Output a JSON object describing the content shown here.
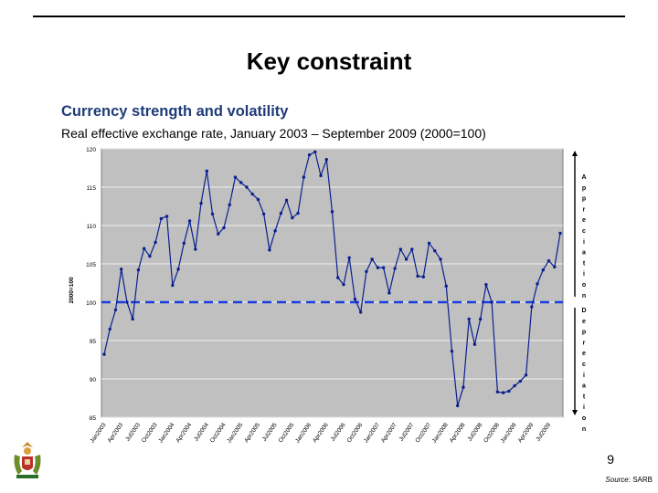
{
  "slide": {
    "title": "Key constraint",
    "subtitle": "Currency strength and volatility",
    "chart_caption": "Real effective exchange rate, January 2003 – September 2009 (2000=100)",
    "page_number": "9",
    "source_prefix": "Source",
    "source_name": ": SARB"
  },
  "colors": {
    "plot_bg": "#c0c0c0",
    "line": "#0a1f8f",
    "baseline": "#1a3de0",
    "subtitle": "#1f3c78"
  },
  "chart_data": {
    "type": "line",
    "ylabel": "2000=100",
    "ylim": [
      85,
      120
    ],
    "yticks": [
      85,
      90,
      95,
      100,
      105,
      110,
      115,
      120
    ],
    "grid": true,
    "baseline_value": 100,
    "x_tick_labels": [
      "Jan2003",
      "Apr2003",
      "Jul2003",
      "Oct2003",
      "Jan2004",
      "Apr2004",
      "Jul2004",
      "Oct2004",
      "Jan2005",
      "Apr2005",
      "Jul2005",
      "Oct2005",
      "Jan2006",
      "Apr2006",
      "Jul2006",
      "Oct2006",
      "Jan2007",
      "Apr2007",
      "Jul2007",
      "Oct2007",
      "Jan2008",
      "Apr2008",
      "Jul2008",
      "Oct2008",
      "Jan2009",
      "Apr2009",
      "Jul2009"
    ],
    "right_labels": {
      "top": "Appreciation",
      "bottom": "Depreciation"
    },
    "series": [
      {
        "values": [
          93.2,
          96.5,
          99.0,
          104.3,
          100.0,
          97.8,
          104.2,
          107.0,
          106.0,
          107.8,
          110.9,
          111.2,
          102.2,
          104.3,
          107.7,
          110.6,
          106.9,
          112.9,
          117.1,
          111.5,
          108.9,
          109.7,
          112.7,
          116.3,
          115.6,
          115.0,
          114.1,
          113.4,
          111.5,
          106.8,
          109.3,
          111.6,
          113.3,
          111.0,
          111.6,
          116.3,
          119.2,
          119.6,
          116.5,
          118.6,
          111.8,
          103.2,
          102.3,
          105.8,
          100.4,
          98.7,
          104.0,
          105.6,
          104.5,
          104.5,
          101.2,
          104.4,
          106.9,
          105.6,
          106.9,
          103.4,
          103.3,
          107.7,
          106.7,
          105.6,
          102.1,
          93.6,
          86.5,
          88.9,
          97.8,
          94.5,
          97.8,
          102.3,
          100.0,
          88.3,
          88.2,
          88.4,
          89.1,
          89.7,
          90.5,
          99.4,
          102.4,
          104.2,
          105.4,
          104.6,
          109.0
        ]
      }
    ]
  }
}
